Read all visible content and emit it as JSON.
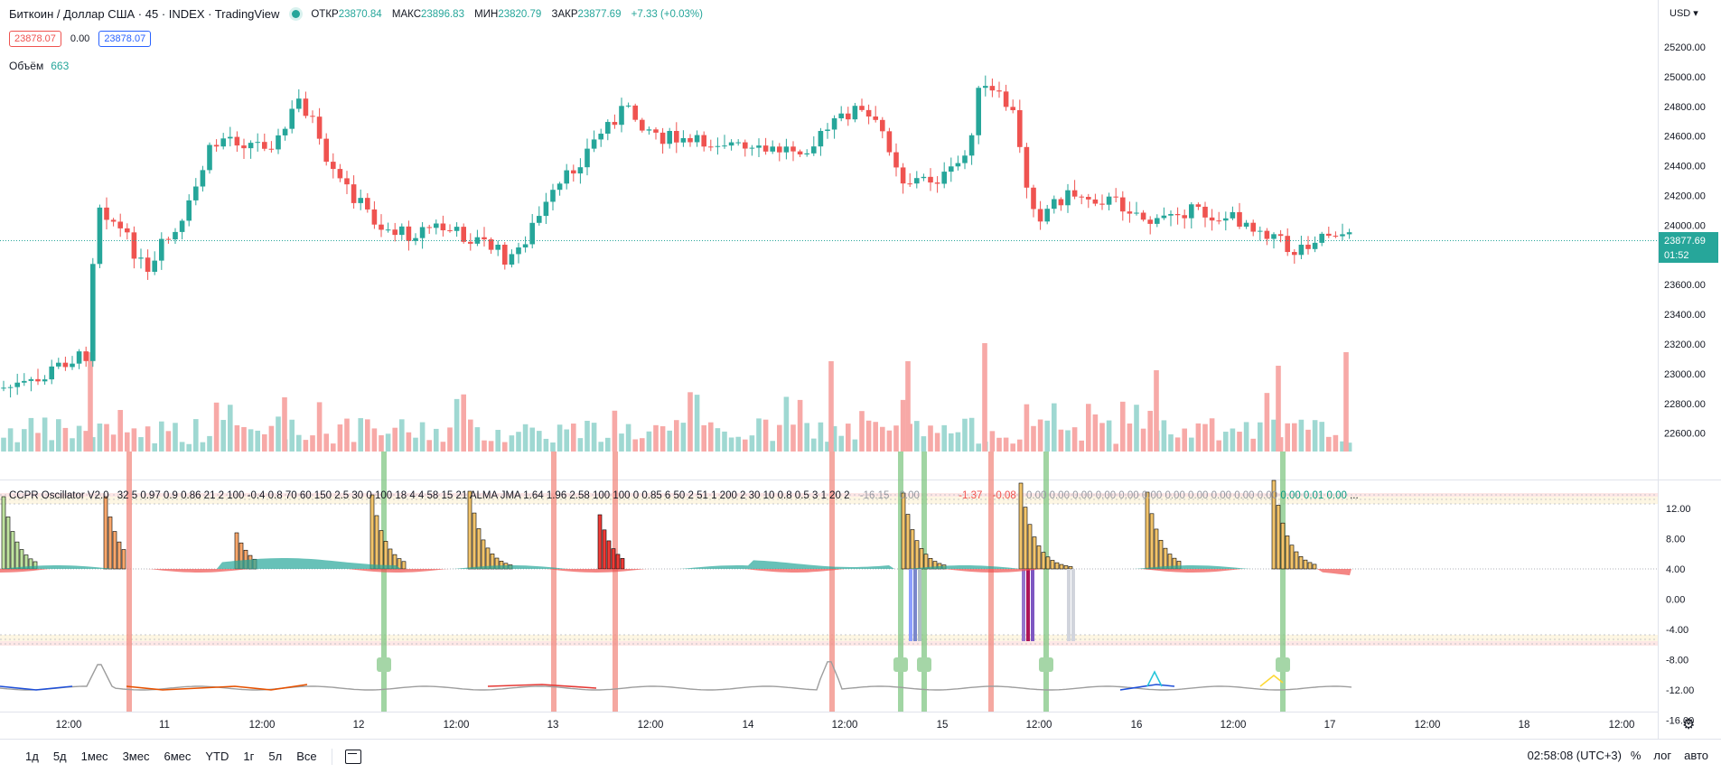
{
  "header": {
    "symbol": "Биткоин / Доллар США · 45 · INDEX · TradingView",
    "ohlc": [
      {
        "label": "ОТКР",
        "value": "23870.84"
      },
      {
        "label": "МАКС",
        "value": "23896.83"
      },
      {
        "label": "МИН",
        "value": "23820.79"
      },
      {
        "label": "ЗАКР",
        "value": "23877.69"
      }
    ],
    "change": "+7.33 (+0.03%)",
    "bid": "23878.07",
    "spread": "0.00",
    "ask": "23878.07"
  },
  "volume": {
    "label": "Объём",
    "value": "663"
  },
  "indicator": {
    "name": "CCPR Oscillator V2.0",
    "params": "32 5 0.97 0.9 0.86 21 2 100 -0.4 0.8 70 60 150 2.5 30 0 100 18 4 4 58 15 21 ALMA JMA 1.64 1.96 2.58 100 100 0 0.85 6 50 2 51 1 200 2 30 10 0.8 0.5 3 1 20 2",
    "val1": "-16.15",
    "val2": "0.00",
    "val3": "-1.37",
    "val4": "-0.08",
    "val5": "0.00 0.00 0.00 0.00 0.00 0.00 0.00 0.00 0.00 0.00 0.00",
    "val6": "0.00 0.01 0.00",
    "ellipsis": "..."
  },
  "price_axis": {
    "currency": "USD",
    "ticks": [
      "25200.00",
      "25000.00",
      "24800.00",
      "24600.00",
      "24400.00",
      "24200.00",
      "24000.00",
      "23800.00",
      "23600.00",
      "23400.00",
      "23200.00",
      "23000.00",
      "22800.00",
      "22600.00"
    ],
    "last_price": "23877.69",
    "countdown": "01:52"
  },
  "osc_axis": {
    "ticks": [
      "12.00",
      "8.00",
      "4.00",
      "0.00",
      "-4.00",
      "-8.00",
      "-12.00",
      "-16.00"
    ]
  },
  "time_axis": {
    "ticks": [
      "12:00",
      "11",
      "12:00",
      "12",
      "12:00",
      "13",
      "12:00",
      "14",
      "12:00",
      "15",
      "12:00",
      "16",
      "12:00",
      "17",
      "12:00",
      "18",
      "12:00"
    ]
  },
  "bottom_bar": {
    "timeframes": [
      "1д",
      "5д",
      "1мес",
      "3мес",
      "6мес",
      "YTD",
      "1г",
      "5л",
      "Все"
    ],
    "clock": "02:58:08 (UTC+3)",
    "percent": "%",
    "log": "лог",
    "auto": "авто"
  },
  "colors": {
    "up": "#26a69a",
    "down": "#ef5350",
    "vol_up": "#9fd8d2",
    "vol_down": "#f7a9a7"
  }
}
